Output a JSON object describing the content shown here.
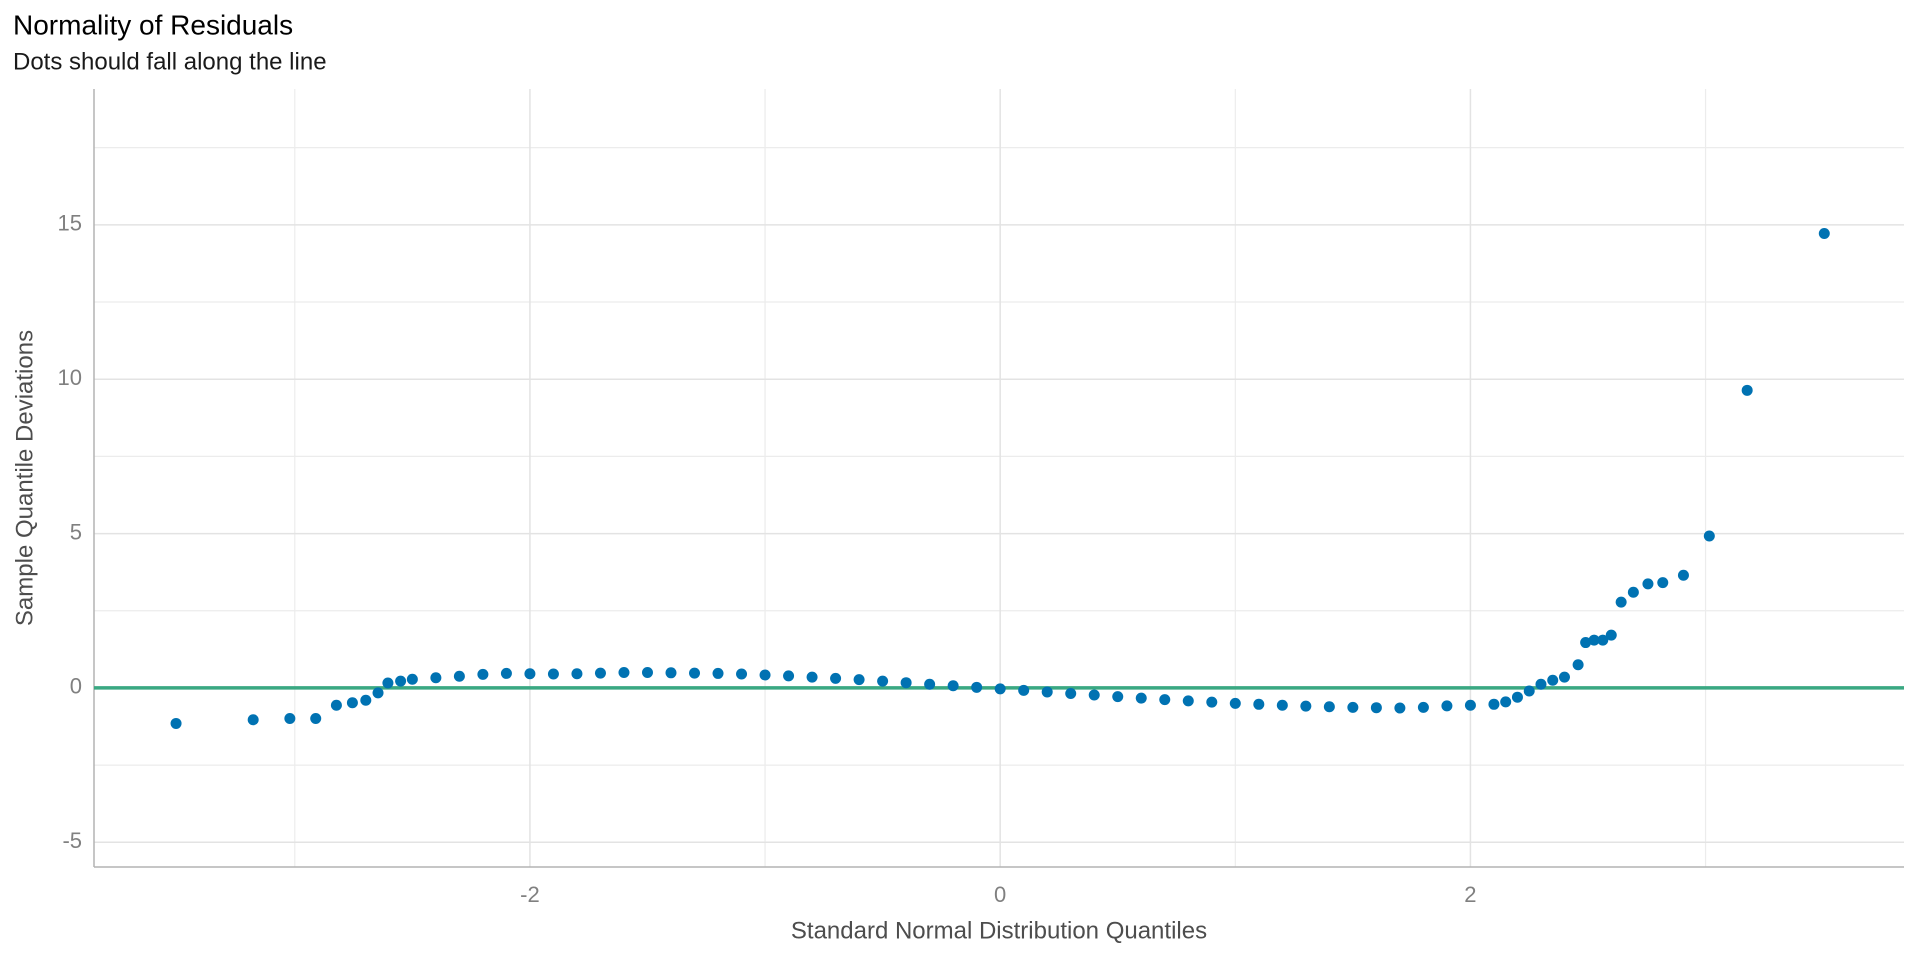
{
  "chart_data": {
    "type": "scatter",
    "title": "Normality of Residuals",
    "subtitle": "Dots should fall along the line",
    "x_label": "Standard Normal Distribution Quantiles",
    "y_label": "Sample Quantile Deviations",
    "color": "#0072b2",
    "reference_line": 0,
    "reference_color": "#3aa882",
    "grid": true,
    "xlim": [
      -3.854,
      3.844
    ],
    "ylim": [
      -5.8,
      19.4
    ],
    "xticks": [
      -2,
      0,
      2
    ],
    "yticks": [
      -5,
      0,
      5,
      10,
      15
    ],
    "minor_xticks": [
      -3,
      -1,
      1,
      3
    ],
    "minor_yticks": [
      -2.5,
      2.5,
      7.5,
      12.5,
      17.5
    ],
    "x": [
      -3.505,
      -3.177,
      -3.021,
      -2.911,
      -2.823,
      -2.755,
      -2.698,
      -2.646,
      -2.604,
      -2.55,
      -2.5,
      -2.4,
      -2.3,
      -2.2,
      -2.1,
      -2.0,
      -1.9,
      -1.8,
      -1.7,
      -1.6,
      -1.5,
      -1.4,
      -1.3,
      -1.2,
      -1.1,
      -1.0,
      -0.9,
      -0.8,
      -0.7,
      -0.6,
      -0.5,
      -0.4,
      -0.3,
      -0.2,
      -0.1,
      0,
      0.1,
      0.2,
      0.3,
      0.4,
      0.5,
      0.6,
      0.7,
      0.8,
      0.9,
      1.0,
      1.1,
      1.2,
      1.3,
      1.4,
      1.5,
      1.6,
      1.7,
      1.8,
      1.9,
      2.0,
      2.1,
      2.15,
      2.2,
      2.25,
      2.3,
      2.35,
      2.4,
      2.458,
      2.49,
      2.526,
      2.563,
      2.599,
      2.641,
      2.693,
      2.755,
      2.818,
      2.906,
      3.016,
      3.177,
      3.505
    ],
    "values": [
      -1.15,
      -1.03,
      -0.99,
      -0.99,
      -0.56,
      -0.48,
      -0.4,
      -0.16,
      0.16,
      0.22,
      0.28,
      0.33,
      0.38,
      0.44,
      0.47,
      0.46,
      0.45,
      0.46,
      0.48,
      0.5,
      0.5,
      0.49,
      0.48,
      0.47,
      0.45,
      0.42,
      0.39,
      0.35,
      0.31,
      0.27,
      0.22,
      0.17,
      0.12,
      0.07,
      0.02,
      -0.03,
      -0.08,
      -0.13,
      -0.18,
      -0.23,
      -0.28,
      -0.33,
      -0.38,
      -0.42,
      -0.46,
      -0.5,
      -0.53,
      -0.56,
      -0.59,
      -0.61,
      -0.63,
      -0.64,
      -0.65,
      -0.63,
      -0.58,
      -0.56,
      -0.53,
      -0.45,
      -0.3,
      -0.1,
      0.12,
      0.25,
      0.35,
      0.75,
      1.47,
      1.55,
      1.55,
      1.71,
      2.78,
      3.1,
      3.37,
      3.41,
      3.65,
      4.92,
      9.64,
      14.72
    ]
  }
}
